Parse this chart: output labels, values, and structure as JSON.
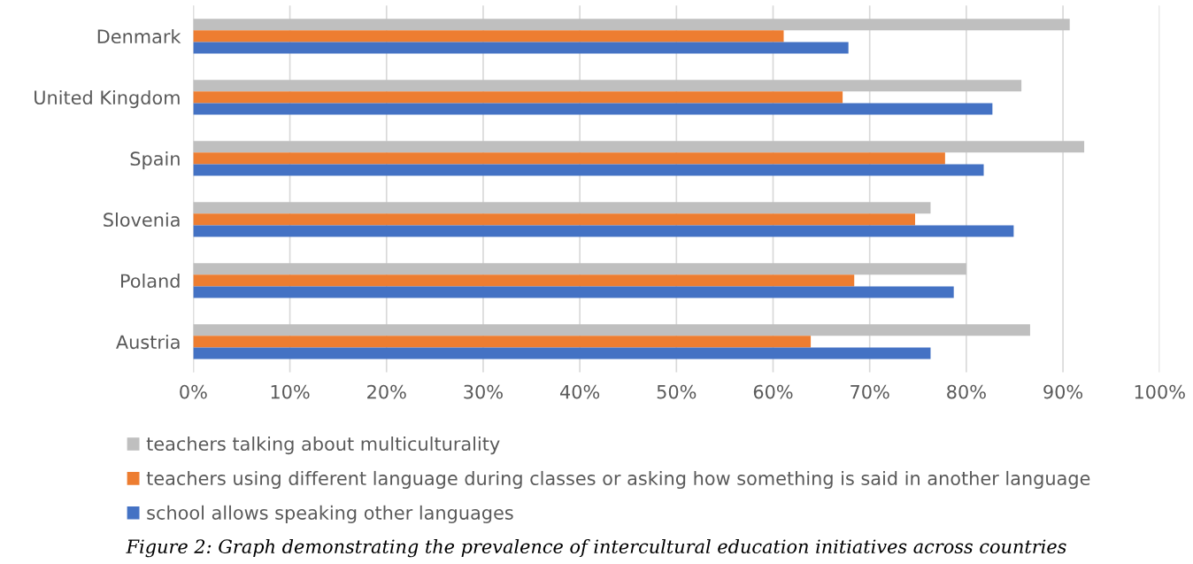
{
  "chart_data": {
    "type": "bar",
    "orientation": "horizontal",
    "categories": [
      "Denmark",
      "United Kingdom",
      "Spain",
      "Slovenia",
      "Poland",
      "Austria"
    ],
    "series": [
      {
        "name": "teachers talking about multiculturality",
        "color": "#bfbfbf",
        "values": [
          90.7,
          85.7,
          92.2,
          76.3,
          80.0,
          86.6
        ]
      },
      {
        "name": "teachers using different language during classes or asking how something is said in another language",
        "color": "#ed7d31",
        "values": [
          61.1,
          67.2,
          77.8,
          74.7,
          68.4,
          63.9
        ]
      },
      {
        "name": "school allows speaking other languages",
        "color": "#4472c4",
        "values": [
          67.8,
          82.7,
          81.8,
          84.9,
          78.7,
          76.3
        ]
      }
    ],
    "xlim": [
      0,
      100
    ],
    "xticks": [
      {
        "value": 0,
        "label": "0%"
      },
      {
        "value": 10,
        "label": "10%"
      },
      {
        "value": 20,
        "label": "20%"
      },
      {
        "value": 30,
        "label": "30%"
      },
      {
        "value": 40,
        "label": "40%"
      },
      {
        "value": 50,
        "label": "50%"
      },
      {
        "value": 60,
        "label": "60%"
      },
      {
        "value": 70,
        "label": "70%"
      },
      {
        "value": 80,
        "label": "80%"
      },
      {
        "value": 90,
        "label": "90%"
      },
      {
        "value": 100,
        "label": "100%"
      }
    ],
    "grid": "x",
    "legend": "bottom",
    "annotations": [
      "Figure 2: Graph demonstrating the prevalence of intercultural education initiatives across countries"
    ]
  }
}
